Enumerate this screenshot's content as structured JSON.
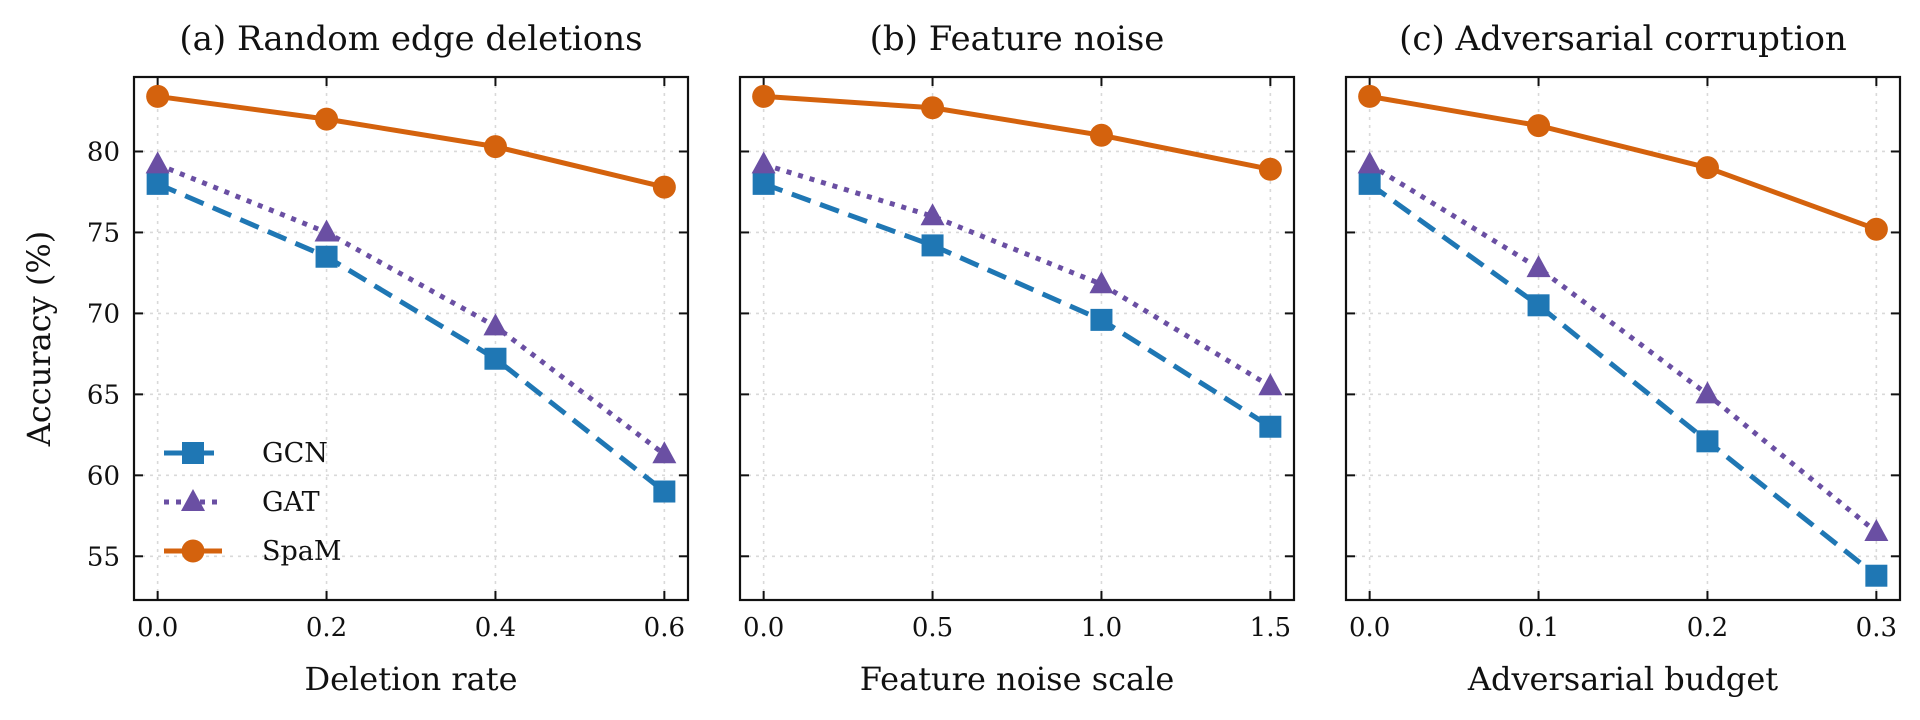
{
  "chart_data": [
    {
      "type": "line",
      "title": "(a) Random edge deletions",
      "xlabel": "Deletion rate",
      "ylabel": "Accuracy (%)",
      "x": [
        0.0,
        0.2,
        0.4,
        0.6
      ],
      "xticks": [
        "0.0",
        "0.2",
        "0.4",
        "0.6"
      ],
      "xlim": [
        -0.028,
        0.628
      ],
      "ylim": [
        52.3,
        84.6
      ],
      "yticks": [
        "55",
        "60",
        "65",
        "70",
        "75",
        "80"
      ],
      "grid": true,
      "legend": "lower-left",
      "series": [
        {
          "name": "GCN",
          "values": [
            78.0,
            73.5,
            67.2,
            59.0
          ]
        },
        {
          "name": "GAT",
          "values": [
            79.2,
            75.0,
            69.2,
            61.3
          ]
        },
        {
          "name": "SpaM",
          "values": [
            83.4,
            82.0,
            80.3,
            77.8
          ]
        }
      ]
    },
    {
      "type": "line",
      "title": "(b) Feature noise",
      "xlabel": "Feature noise scale",
      "ylabel": "",
      "x": [
        0.0,
        0.5,
        1.0,
        1.5
      ],
      "xticks": [
        "0.0",
        "0.5",
        "1.0",
        "1.5"
      ],
      "xlim": [
        -0.07,
        1.57
      ],
      "ylim": [
        52.3,
        84.6
      ],
      "yticks": [
        "55",
        "60",
        "65",
        "70",
        "75",
        "80"
      ],
      "grid": true,
      "series": [
        {
          "name": "GCN",
          "values": [
            78.0,
            74.2,
            69.6,
            63.0
          ]
        },
        {
          "name": "GAT",
          "values": [
            79.2,
            76.0,
            71.8,
            65.5
          ]
        },
        {
          "name": "SpaM",
          "values": [
            83.4,
            82.7,
            81.0,
            78.9
          ]
        }
      ]
    },
    {
      "type": "line",
      "title": "(c) Adversarial corruption",
      "xlabel": "Adversarial budget",
      "ylabel": "",
      "x": [
        0.0,
        0.1,
        0.2,
        0.3
      ],
      "xticks": [
        "0.0",
        "0.1",
        "0.2",
        "0.3"
      ],
      "xlim": [
        -0.014,
        0.314
      ],
      "ylim": [
        52.3,
        84.6
      ],
      "yticks": [
        "55",
        "60",
        "65",
        "70",
        "75",
        "80"
      ],
      "grid": true,
      "series": [
        {
          "name": "GCN",
          "values": [
            78.0,
            70.5,
            62.1,
            53.8
          ]
        },
        {
          "name": "GAT",
          "values": [
            79.2,
            72.8,
            65.0,
            56.5
          ]
        },
        {
          "name": "SpaM",
          "values": [
            83.4,
            81.6,
            79.0,
            75.2
          ]
        }
      ]
    }
  ],
  "series_style": {
    "GCN": {
      "color": "#1f77b4",
      "marker": "square",
      "line": "dashed"
    },
    "GAT": {
      "color": "#6a4fa3",
      "marker": "triangle",
      "line": "dotted"
    },
    "SpaM": {
      "color": "#d4620d",
      "marker": "circle",
      "line": "solid"
    }
  }
}
